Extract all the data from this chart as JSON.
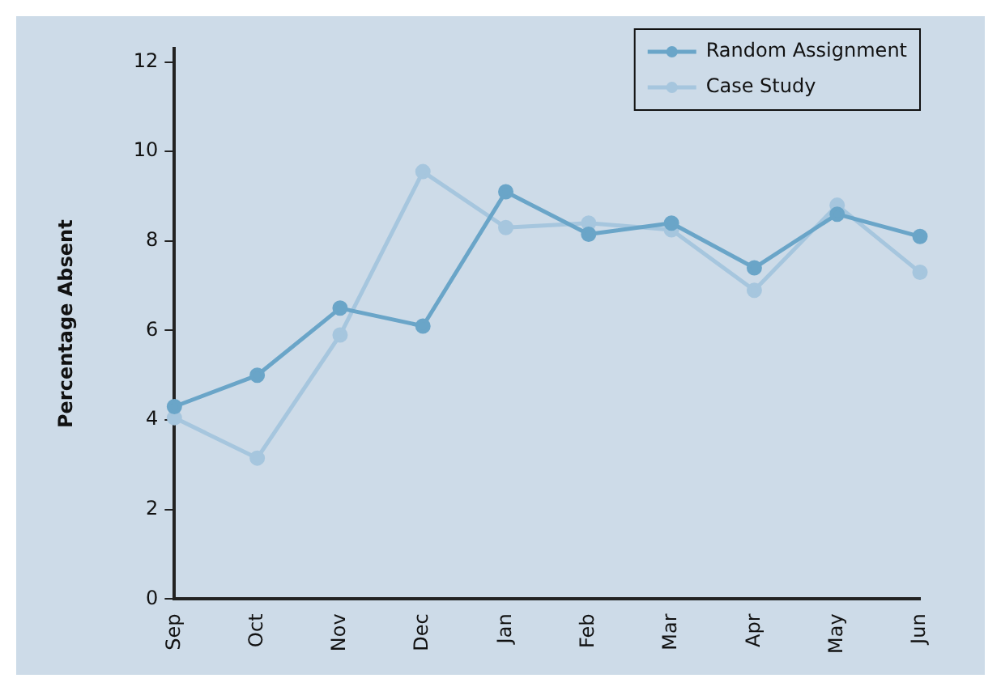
{
  "chart_data": {
    "type": "line",
    "ylabel": "Percentage Absent",
    "categories": [
      "Sep",
      "Oct",
      "Nov",
      "Dec",
      "Jan",
      "Feb",
      "Mar",
      "Apr",
      "May",
      "Jun"
    ],
    "series": [
      {
        "name": "Random Assignment",
        "color": "#6aa5c8",
        "values": [
          4.3,
          5.0,
          6.5,
          6.1,
          9.1,
          8.15,
          8.4,
          7.4,
          8.6,
          8.1
        ]
      },
      {
        "name": "Case Study",
        "color": "#a6c6de",
        "values": [
          4.05,
          3.15,
          5.9,
          9.55,
          8.3,
          8.4,
          8.25,
          6.9,
          8.8,
          7.3
        ]
      }
    ],
    "ylim": [
      0,
      12.3
    ],
    "yticks": [
      0,
      2,
      4,
      6,
      8,
      10,
      12
    ],
    "grid": false,
    "legend": "top right",
    "marker": "circle",
    "line_style": "solid"
  }
}
